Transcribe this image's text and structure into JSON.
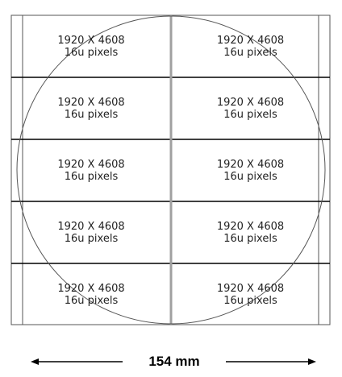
{
  "grid": {
    "rows": 5,
    "cols": 2,
    "cells": [
      {
        "line1": "1920 X 4608",
        "line2": "16u pixels"
      },
      {
        "line1": "1920 X 4608",
        "line2": "16u pixels"
      },
      {
        "line1": "1920 X 4608",
        "line2": "16u pixels"
      },
      {
        "line1": "1920 X 4608",
        "line2": "16u pixels"
      },
      {
        "line1": "1920 X 4608",
        "line2": "16u pixels"
      },
      {
        "line1": "1920 X 4608",
        "line2": "16u pixels"
      },
      {
        "line1": "1920 X 4608",
        "line2": "16u pixels"
      },
      {
        "line1": "1920 X 4608",
        "line2": "16u pixels"
      },
      {
        "line1": "1920 X 4608",
        "line2": "16u pixels"
      },
      {
        "line1": "1920 X 4608",
        "line2": "16u pixels"
      }
    ]
  },
  "dimension": {
    "label": "154 mm"
  },
  "colors": {
    "lines": "#000000",
    "wafer": "#555555",
    "center_divider": "#a0a0a0"
  }
}
